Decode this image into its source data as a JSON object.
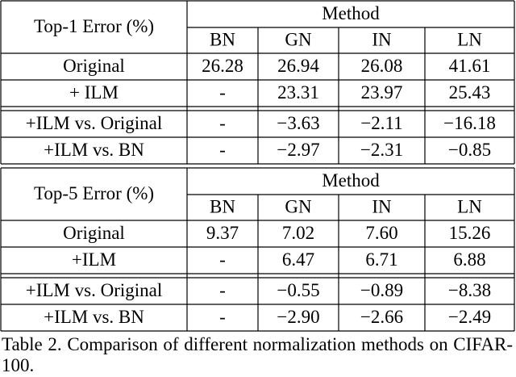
{
  "tables": [
    {
      "corner": "Top-1 Error (%)",
      "group": "Method",
      "columns": [
        "BN",
        "GN",
        "IN",
        "LN"
      ],
      "rows": [
        [
          "Original",
          "26.28",
          "26.94",
          "26.08",
          "41.61"
        ],
        [
          "+ ILM",
          "-",
          "23.31",
          "23.97",
          "25.43"
        ],
        [
          "+ILM vs. Original",
          "-",
          "−3.63",
          "−2.11",
          "−16.18"
        ],
        [
          "+ILM vs. BN",
          "-",
          "−2.97",
          "−2.31",
          "−0.85"
        ]
      ]
    },
    {
      "corner": "Top-5 Error (%)",
      "group": "Method",
      "columns": [
        "BN",
        "GN",
        "IN",
        "LN"
      ],
      "rows": [
        [
          "Original",
          "9.37",
          "7.02",
          "7.60",
          "15.26"
        ],
        [
          "+ILM",
          "-",
          "6.47",
          "6.71",
          "6.88"
        ],
        [
          "+ILM vs. Original",
          "-",
          "−0.55",
          "−0.89",
          "−8.38"
        ],
        [
          "+ILM vs. BN",
          "-",
          "−2.90",
          "−2.66",
          "−2.49"
        ]
      ]
    }
  ],
  "caption": "Table 2. Comparison of different normalization methods on CIFAR-100."
}
